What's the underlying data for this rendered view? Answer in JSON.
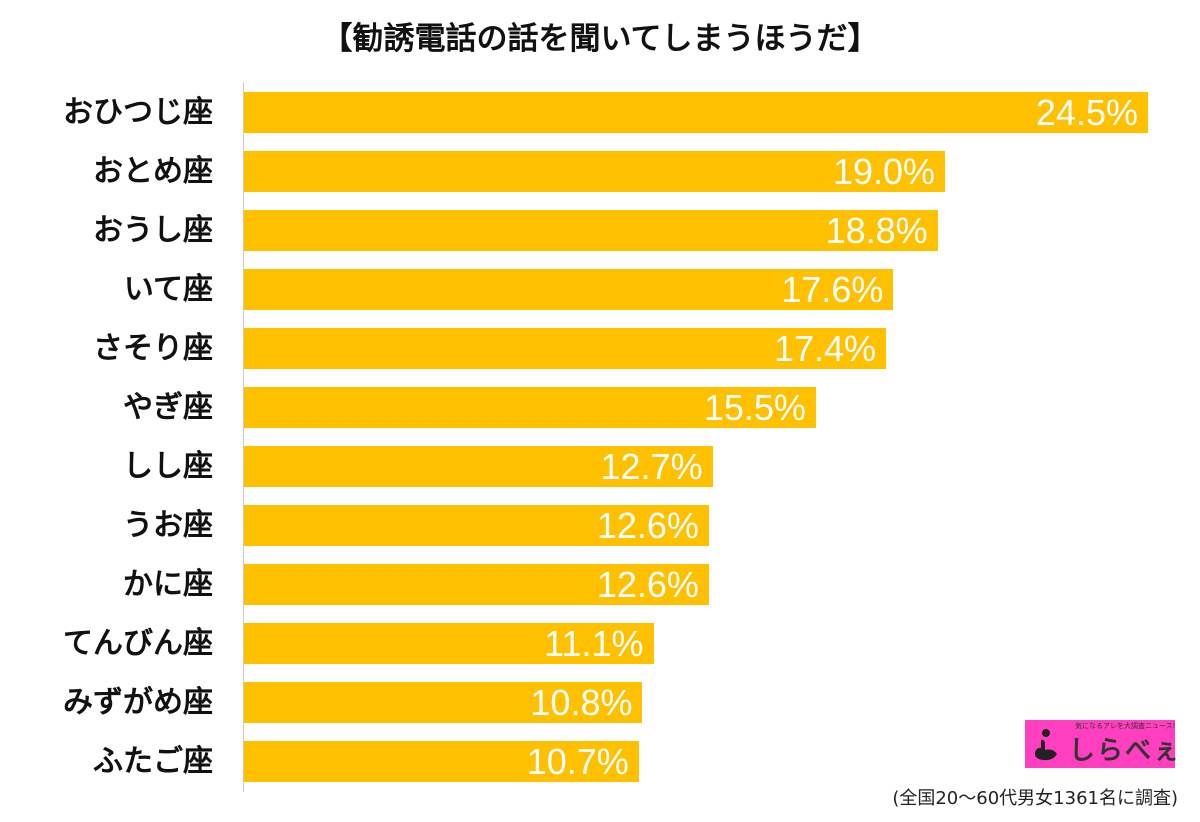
{
  "chart_data": {
    "type": "bar",
    "orientation": "horizontal",
    "title": "【勧誘電話の話を聞いてしまうほうだ】",
    "categories": [
      "おひつじ座",
      "おとめ座",
      "おうし座",
      "いて座",
      "さそり座",
      "やぎ座",
      "しし座",
      "うお座",
      "かに座",
      "てんびん座",
      "みずがめ座",
      "ふたご座"
    ],
    "values": [
      24.5,
      19.0,
      18.8,
      17.6,
      17.4,
      15.5,
      12.7,
      12.6,
      12.6,
      11.1,
      10.8,
      10.7
    ],
    "value_labels": [
      "24.5%",
      "19.0%",
      "18.8%",
      "17.6%",
      "17.4%",
      "15.5%",
      "12.7%",
      "12.6%",
      "12.6%",
      "11.1%",
      "10.8%",
      "10.7%"
    ],
    "xlim": [
      0,
      24.5
    ],
    "grid": false,
    "bar_color": "#ffc000",
    "note": "(全国20〜60代男女1361名に調査)"
  },
  "logo": {
    "brand": "しらべぇ",
    "tagline": "気になるアレを大調査ニュース!",
    "color": "#ff3fbf"
  }
}
